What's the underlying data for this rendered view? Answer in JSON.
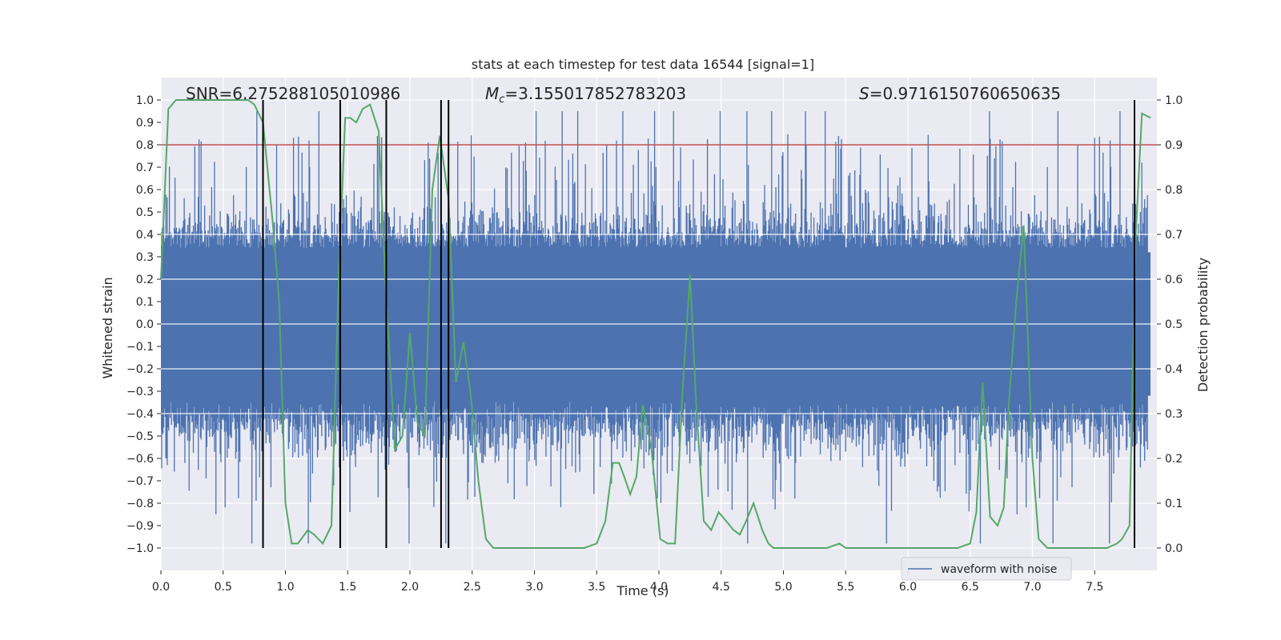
{
  "chart_data": {
    "type": "line",
    "title": "stats at each timestep for test data 16544 [signal=1]",
    "xlabel": "Time (s)",
    "ylabel_left": "Whitened strain",
    "ylabel_right": "Detection probability",
    "xlim": [
      0.0,
      8.0
    ],
    "ylim_left": [
      -1.1,
      1.1
    ],
    "ylim_right": [
      -0.05,
      1.05
    ],
    "x_ticks": [
      0.0,
      0.5,
      1.0,
      1.5,
      2.0,
      2.5,
      3.0,
      3.5,
      4.0,
      4.5,
      5.0,
      5.5,
      6.0,
      6.5,
      7.0,
      7.5
    ],
    "x_tick_labels": [
      "0.0",
      "0.5",
      "1.0",
      "1.5",
      "2.0",
      "2.5",
      "3.0",
      "3.5",
      "4.0",
      "4.5",
      "5.0",
      "5.5",
      "6.0",
      "6.5",
      "7.0",
      "7.5"
    ],
    "y_ticks_left": [
      -1.0,
      -0.9,
      -0.8,
      -0.7,
      -0.6,
      -0.5,
      -0.4,
      -0.3,
      -0.2,
      -0.1,
      0.0,
      0.1,
      0.2,
      0.3,
      0.4,
      0.5,
      0.6,
      0.7,
      0.8,
      0.9,
      1.0
    ],
    "y_tick_labels_left": [
      "−1.0",
      "−0.9",
      "−0.8",
      "−0.7",
      "−0.6",
      "−0.5",
      "−0.4",
      "−0.3",
      "−0.2",
      "−0.1",
      "0.0",
      "0.1",
      "0.2",
      "0.3",
      "0.4",
      "0.5",
      "0.6",
      "0.7",
      "0.8",
      "0.9",
      "1.0"
    ],
    "y_ticks_right": [
      0.0,
      0.1,
      0.2,
      0.3,
      0.4,
      0.5,
      0.6,
      0.7,
      0.8,
      0.9,
      1.0
    ],
    "y_tick_labels_right": [
      "0.0",
      "0.1",
      "0.2",
      "0.3",
      "0.4",
      "0.5",
      "0.6",
      "0.7",
      "0.8",
      "0.9",
      "1.0"
    ],
    "annotations": {
      "snr": "SNR=6.275288105010986",
      "mc_symbol": "M",
      "mc_subscript": "c",
      "mc_value": "=3.155017852783203",
      "s_symbol": "S",
      "s_value": "=0.9716150760650635"
    },
    "threshold": {
      "value": 0.9,
      "axis": "right",
      "color": "#c44e52"
    },
    "vertical_lines": [
      0.82,
      1.44,
      1.81,
      2.25,
      2.31,
      7.82
    ],
    "waveform": {
      "name": "waveform with noise",
      "color": "#4c72b0",
      "description": "dense noisy strain, envelope roughly ±0.5 with spikes up to ±1.0"
    },
    "probability": {
      "name": "Detection probability",
      "color": "#55a868",
      "x": [
        0.0,
        0.06,
        0.12,
        0.2,
        0.3,
        0.4,
        0.5,
        0.6,
        0.7,
        0.75,
        0.82,
        0.9,
        0.95,
        1.0,
        1.05,
        1.1,
        1.18,
        1.23,
        1.3,
        1.37,
        1.43,
        1.48,
        1.52,
        1.57,
        1.62,
        1.68,
        1.75,
        1.81,
        1.88,
        1.94,
        2.0,
        2.06,
        2.12,
        2.18,
        2.24,
        2.31,
        2.37,
        2.43,
        2.49,
        2.55,
        2.61,
        2.67,
        2.75,
        2.9,
        3.05,
        3.2,
        3.3,
        3.4,
        3.5,
        3.57,
        3.63,
        3.68,
        3.72,
        3.77,
        3.82,
        3.87,
        3.94,
        4.01,
        4.07,
        4.13,
        4.19,
        4.25,
        4.3,
        4.36,
        4.42,
        4.48,
        4.54,
        4.6,
        4.65,
        4.7,
        4.76,
        4.83,
        4.88,
        4.92,
        4.98,
        5.1,
        5.25,
        5.35,
        5.45,
        5.5,
        5.6,
        5.7,
        5.8,
        5.9,
        6.0,
        6.1,
        6.3,
        6.4,
        6.5,
        6.55,
        6.6,
        6.66,
        6.72,
        6.77,
        6.81,
        6.87,
        6.93,
        7.0,
        7.05,
        7.12,
        7.2,
        7.3,
        7.4,
        7.5,
        7.6,
        7.68,
        7.72,
        7.78,
        7.83,
        7.88,
        7.95
      ],
      "y": [
        0.6,
        0.98,
        1.0,
        1.0,
        1.0,
        1.0,
        1.0,
        1.0,
        1.0,
        0.99,
        0.95,
        0.72,
        0.55,
        0.1,
        0.01,
        0.01,
        0.04,
        0.03,
        0.01,
        0.05,
        0.62,
        0.96,
        0.96,
        0.95,
        0.98,
        0.99,
        0.93,
        0.55,
        0.22,
        0.25,
        0.48,
        0.28,
        0.25,
        0.8,
        0.92,
        0.78,
        0.37,
        0.46,
        0.34,
        0.15,
        0.02,
        0.0,
        0.0,
        0.0,
        0.0,
        0.0,
        0.0,
        0.0,
        0.01,
        0.06,
        0.19,
        0.19,
        0.16,
        0.12,
        0.16,
        0.32,
        0.22,
        0.02,
        0.01,
        0.01,
        0.35,
        0.61,
        0.32,
        0.06,
        0.04,
        0.08,
        0.06,
        0.04,
        0.03,
        0.06,
        0.1,
        0.04,
        0.01,
        0.0,
        0.0,
        0.0,
        0.0,
        0.0,
        0.01,
        0.0,
        0.0,
        0.0,
        0.0,
        0.0,
        0.0,
        0.0,
        0.0,
        0.0,
        0.01,
        0.08,
        0.37,
        0.07,
        0.05,
        0.09,
        0.32,
        0.55,
        0.72,
        0.2,
        0.02,
        0.0,
        0.0,
        0.0,
        0.0,
        0.0,
        0.0,
        0.01,
        0.02,
        0.05,
        0.7,
        0.97,
        0.96
      ]
    },
    "legend": {
      "position": "lower-right",
      "entries": [
        "waveform with noise"
      ]
    }
  }
}
